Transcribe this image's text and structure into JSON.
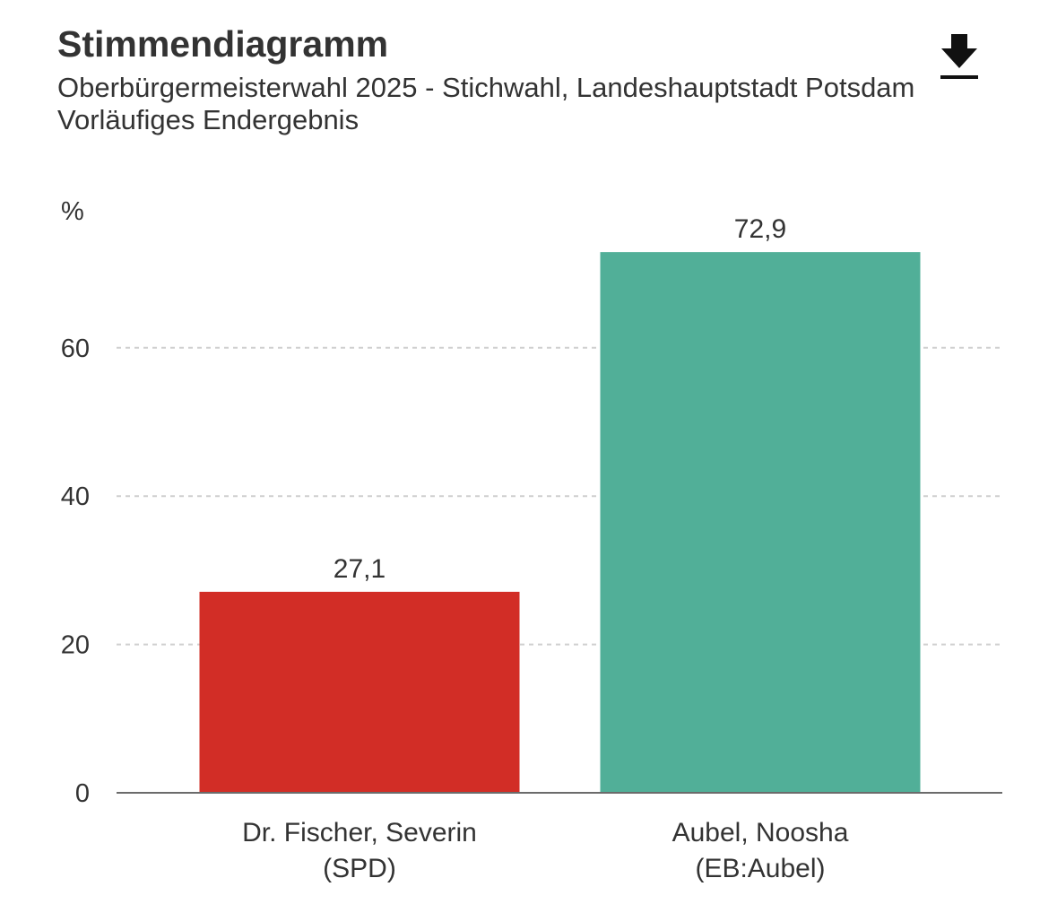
{
  "header": {
    "title": "Stimmendiagramm",
    "subtitle_line1": "Oberbürgermeisterwahl 2025 - Stichwahl, Landeshauptstadt Potsdam",
    "subtitle_line2": "Vorläufiges Endergebnis"
  },
  "toolbar": {
    "download_icon": "download-icon"
  },
  "chart_data": {
    "type": "bar",
    "title": "Stimmendiagramm",
    "subtitle": "Oberbürgermeisterwahl 2025 - Stichwahl, Landeshauptstadt Potsdam — Vorläufiges Endergebnis",
    "ylabel": "%",
    "xlabel": "",
    "ylim": [
      0,
      72.9
    ],
    "yticks": [
      {
        "value": 0,
        "label": "0"
      },
      {
        "value": 20,
        "label": "20"
      },
      {
        "value": 40,
        "label": "40"
      },
      {
        "value": 60,
        "label": "60"
      }
    ],
    "grid": true,
    "categories": [
      {
        "line1": "Dr. Fischer, Severin",
        "line2": "(SPD)"
      },
      {
        "line1": "Aubel, Noosha",
        "line2": "(EB:Aubel)"
      }
    ],
    "values": [
      27.1,
      72.9
    ],
    "value_labels": [
      "27,1",
      "72,9"
    ],
    "colors": [
      "#d22d26",
      "#51af98"
    ]
  }
}
